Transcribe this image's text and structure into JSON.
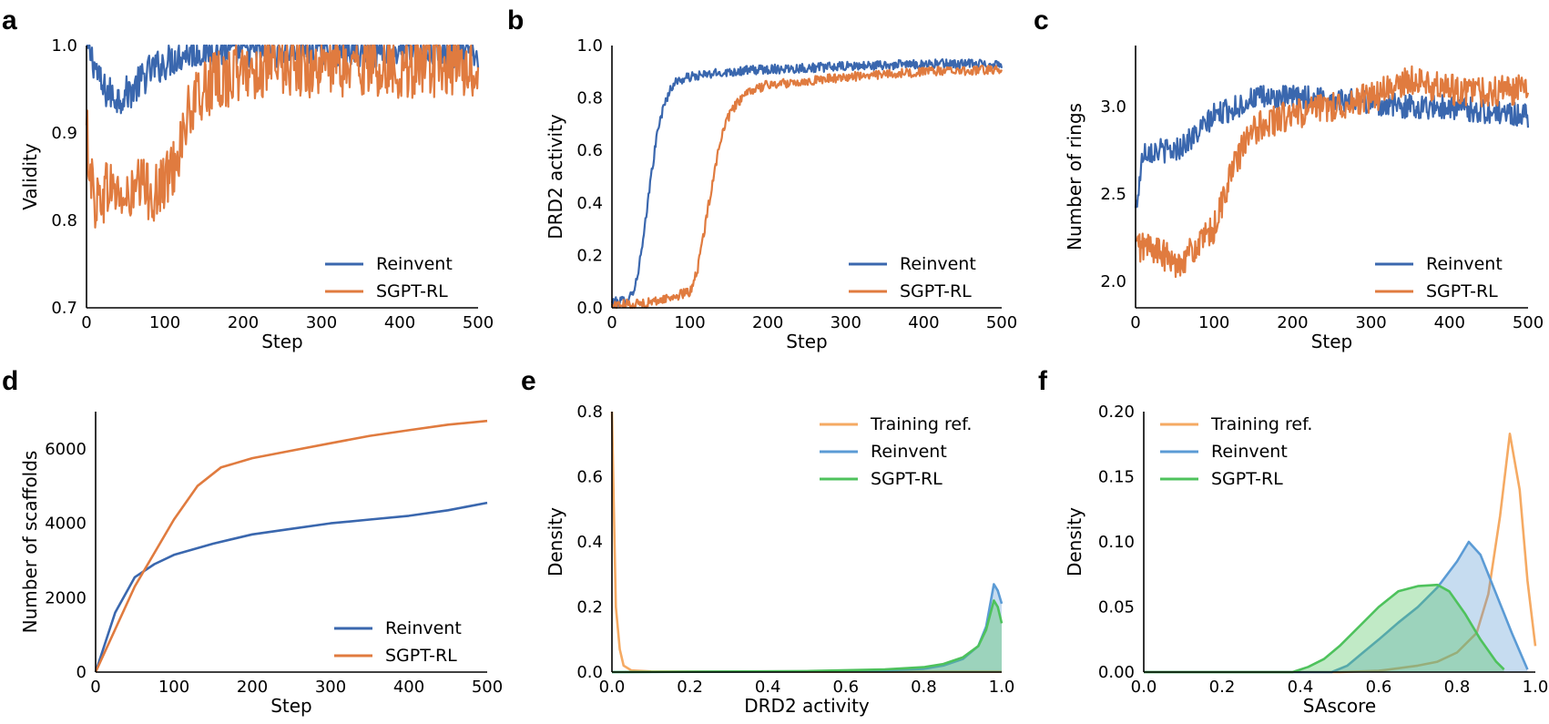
{
  "colors": {
    "reinvent": "#3a67ae",
    "sgpt": "#e07b3f",
    "training": "#f5aa63",
    "reinvent_kde": "#5b9bd5",
    "sgpt_kde": "#4ec25c"
  },
  "chart_data": [
    {
      "id": "a",
      "panel_letter": "a",
      "type": "line",
      "xlabel": "Step",
      "ylabel": "Validity",
      "xlim": [
        0,
        500
      ],
      "ylim": [
        0.7,
        1.0
      ],
      "xticks": [
        "0",
        "100",
        "200",
        "300",
        "400",
        "500"
      ],
      "yticks": [
        "0.7",
        "0.8",
        "0.9",
        "1.0"
      ],
      "legend": [
        "Reinvent",
        "SGPT-RL"
      ],
      "legend_position": "lower-right",
      "series": [
        {
          "name": "Reinvent",
          "key": "reinvent",
          "noise": 0.02,
          "x": [
            0,
            10,
            20,
            40,
            60,
            80,
            100,
            120,
            150,
            200,
            300,
            400,
            500
          ],
          "y": [
            1.0,
            0.98,
            0.95,
            0.94,
            0.95,
            0.97,
            0.98,
            0.99,
            0.995,
            0.995,
            0.995,
            0.995,
            0.99
          ]
        },
        {
          "name": "SGPT-RL",
          "key": "sgpt",
          "noise": 0.035,
          "x": [
            0,
            10,
            30,
            50,
            70,
            90,
            110,
            130,
            150,
            170,
            200,
            250,
            300,
            400,
            500
          ],
          "y": [
            0.9,
            0.82,
            0.84,
            0.82,
            0.84,
            0.83,
            0.86,
            0.92,
            0.95,
            0.96,
            0.97,
            0.975,
            0.975,
            0.975,
            0.975
          ]
        }
      ]
    },
    {
      "id": "b",
      "panel_letter": "b",
      "type": "line",
      "xlabel": "Step",
      "ylabel": "DRD2 activity",
      "xlim": [
        0,
        500
      ],
      "ylim": [
        0,
        1.0
      ],
      "xticks": [
        "0",
        "100",
        "200",
        "300",
        "400",
        "500"
      ],
      "yticks": [
        "0.0",
        "0.2",
        "0.4",
        "0.6",
        "0.8",
        "1.0"
      ],
      "legend": [
        "Reinvent",
        "SGPT-RL"
      ],
      "legend_position": "lower-right",
      "series": [
        {
          "name": "Reinvent",
          "key": "reinvent",
          "noise": 0.018,
          "x": [
            0,
            20,
            30,
            40,
            50,
            60,
            70,
            80,
            100,
            150,
            200,
            300,
            400,
            500
          ],
          "y": [
            0.02,
            0.03,
            0.08,
            0.25,
            0.5,
            0.7,
            0.8,
            0.86,
            0.88,
            0.9,
            0.91,
            0.92,
            0.93,
            0.93
          ]
        },
        {
          "name": "SGPT-RL",
          "key": "sgpt",
          "noise": 0.018,
          "x": [
            0,
            50,
            100,
            110,
            120,
            130,
            140,
            150,
            160,
            180,
            200,
            300,
            400,
            500
          ],
          "y": [
            0.01,
            0.02,
            0.06,
            0.15,
            0.32,
            0.5,
            0.65,
            0.73,
            0.78,
            0.83,
            0.85,
            0.88,
            0.9,
            0.91
          ]
        }
      ]
    },
    {
      "id": "c",
      "panel_letter": "c",
      "type": "line",
      "xlabel": "Step",
      "ylabel": "Number of rings",
      "xlim": [
        0,
        500
      ],
      "ylim": [
        1.85,
        3.35
      ],
      "xticks": [
        "0",
        "100",
        "200",
        "300",
        "400",
        "500"
      ],
      "yticks": [
        "2.0",
        "2.5",
        "3.0"
      ],
      "ytick_values": [
        2.0,
        2.5,
        3.0
      ],
      "legend": [
        "Reinvent",
        "SGPT-RL"
      ],
      "legend_position": "lower-right",
      "series": [
        {
          "name": "Reinvent",
          "key": "reinvent",
          "noise": 0.07,
          "x": [
            0,
            10,
            30,
            50,
            80,
            100,
            130,
            150,
            200,
            250,
            300,
            350,
            400,
            450,
            500
          ],
          "y": [
            2.4,
            2.75,
            2.75,
            2.75,
            2.85,
            2.95,
            3.0,
            3.05,
            3.05,
            3.05,
            3.02,
            3.0,
            3.0,
            2.97,
            2.95
          ]
        },
        {
          "name": "SGPT-RL",
          "key": "sgpt",
          "noise": 0.09,
          "x": [
            0,
            20,
            50,
            80,
            100,
            110,
            120,
            140,
            160,
            200,
            250,
            300,
            350,
            400,
            450,
            500
          ],
          "y": [
            2.2,
            2.2,
            2.1,
            2.2,
            2.3,
            2.45,
            2.6,
            2.8,
            2.9,
            2.95,
            3.0,
            3.05,
            3.15,
            3.1,
            3.08,
            3.1
          ]
        }
      ]
    },
    {
      "id": "d",
      "panel_letter": "d",
      "type": "line",
      "xlabel": "Step",
      "ylabel": "Number of scaffolds",
      "xlim": [
        0,
        500
      ],
      "ylim": [
        0,
        7000
      ],
      "xticks": [
        "0",
        "100",
        "200",
        "300",
        "400",
        "500"
      ],
      "yticks": [
        "0",
        "2000",
        "4000",
        "6000"
      ],
      "ytick_values": [
        0,
        2000,
        4000,
        6000
      ],
      "legend": [
        "Reinvent",
        "SGPT-RL"
      ],
      "legend_position": "lower-right",
      "series": [
        {
          "name": "Reinvent",
          "key": "reinvent",
          "noise": 0,
          "x": [
            0,
            25,
            50,
            75,
            100,
            150,
            200,
            250,
            300,
            350,
            400,
            450,
            500
          ],
          "y": [
            0,
            1600,
            2550,
            2900,
            3150,
            3450,
            3700,
            3850,
            4000,
            4100,
            4200,
            4350,
            4550
          ]
        },
        {
          "name": "SGPT-RL",
          "key": "sgpt",
          "noise": 0,
          "x": [
            0,
            50,
            100,
            130,
            160,
            200,
            250,
            300,
            350,
            400,
            450,
            500
          ],
          "y": [
            0,
            2300,
            4100,
            5000,
            5500,
            5750,
            5950,
            6150,
            6350,
            6500,
            6650,
            6750
          ]
        }
      ]
    },
    {
      "id": "e",
      "panel_letter": "e",
      "type": "area",
      "xlabel": "DRD2 activity",
      "ylabel": "Density",
      "xlim": [
        0,
        1.0
      ],
      "ylim": [
        0,
        0.8
      ],
      "xticks": [
        "0.0",
        "0.2",
        "0.4",
        "0.6",
        "0.8",
        "1.0"
      ],
      "yticks": [
        "0.0",
        "0.2",
        "0.4",
        "0.6",
        "0.8"
      ],
      "legend": [
        "Training ref.",
        "Reinvent",
        "SGPT-RL"
      ],
      "legend_position": "upper-right",
      "series": [
        {
          "name": "Training ref.",
          "key": "training",
          "fill": false,
          "x": [
            0.0,
            0.005,
            0.01,
            0.02,
            0.03,
            0.05,
            0.1,
            0.5,
            1.0
          ],
          "y": [
            0.8,
            0.5,
            0.2,
            0.07,
            0.02,
            0.005,
            0.002,
            0.001,
            0.001
          ]
        },
        {
          "name": "Reinvent",
          "key": "reinvent_kde",
          "fill": true,
          "x": [
            0.0,
            0.5,
            0.7,
            0.8,
            0.85,
            0.9,
            0.94,
            0.96,
            0.98,
            0.99,
            1.0
          ],
          "y": [
            0.0,
            0.002,
            0.005,
            0.01,
            0.02,
            0.04,
            0.08,
            0.14,
            0.27,
            0.25,
            0.21
          ]
        },
        {
          "name": "SGPT-RL",
          "key": "sgpt_kde",
          "fill": true,
          "x": [
            0.0,
            0.5,
            0.7,
            0.8,
            0.85,
            0.9,
            0.94,
            0.96,
            0.98,
            0.99,
            1.0
          ],
          "y": [
            0.0,
            0.003,
            0.008,
            0.015,
            0.025,
            0.045,
            0.08,
            0.13,
            0.22,
            0.2,
            0.15
          ]
        }
      ]
    },
    {
      "id": "f",
      "panel_letter": "f",
      "type": "area",
      "xlabel": "SAscore",
      "ylabel": "Density",
      "xlim": [
        0,
        1.0
      ],
      "ylim": [
        0,
        0.2
      ],
      "xticks": [
        "0.0",
        "0.2",
        "0.4",
        "0.6",
        "0.8",
        "1.0"
      ],
      "yticks": [
        "0.00",
        "0.05",
        "0.10",
        "0.15",
        "0.20"
      ],
      "legend": [
        "Training ref.",
        "Reinvent",
        "SGPT-RL"
      ],
      "legend_position": "upper-left",
      "series": [
        {
          "name": "Training ref.",
          "key": "training",
          "fill": false,
          "x": [
            0.0,
            0.5,
            0.6,
            0.7,
            0.75,
            0.8,
            0.85,
            0.88,
            0.91,
            0.935,
            0.96,
            0.98,
            1.0
          ],
          "y": [
            0.0,
            0.0,
            0.001,
            0.005,
            0.008,
            0.015,
            0.03,
            0.06,
            0.12,
            0.183,
            0.14,
            0.07,
            0.02
          ]
        },
        {
          "name": "Reinvent",
          "key": "reinvent_kde",
          "fill": true,
          "x": [
            0.0,
            0.48,
            0.52,
            0.56,
            0.6,
            0.65,
            0.7,
            0.75,
            0.8,
            0.83,
            0.86,
            0.9,
            0.94,
            0.98
          ],
          "y": [
            0.0,
            0.0,
            0.005,
            0.015,
            0.025,
            0.038,
            0.05,
            0.065,
            0.085,
            0.1,
            0.09,
            0.06,
            0.03,
            0.002
          ]
        },
        {
          "name": "SGPT-RL",
          "key": "sgpt_kde",
          "fill": true,
          "x": [
            0.0,
            0.38,
            0.42,
            0.46,
            0.5,
            0.55,
            0.6,
            0.65,
            0.7,
            0.75,
            0.78,
            0.82,
            0.86,
            0.9,
            0.92
          ],
          "y": [
            0.0,
            0.0,
            0.004,
            0.01,
            0.02,
            0.035,
            0.05,
            0.062,
            0.066,
            0.067,
            0.062,
            0.045,
            0.025,
            0.008,
            0.002
          ]
        }
      ]
    }
  ]
}
